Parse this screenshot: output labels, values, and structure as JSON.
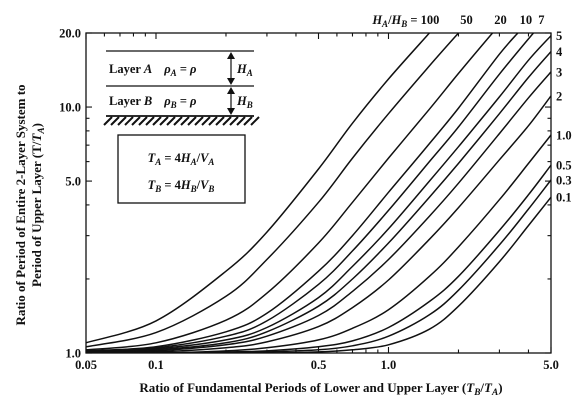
{
  "chart_data": {
    "type": "line",
    "xlabel": "Ratio of Fundamental Periods of Lower and Upper Layer (T_B/T_A)",
    "ylabel_line1": "Ratio of Period of Entire 2-Layer System to",
    "ylabel_line2": "Period of Upper Layer (T/T_A)",
    "x_scale": "log",
    "y_scale": "log",
    "xlim": [
      0.05,
      5.0
    ],
    "ylim": [
      1.0,
      20.0
    ],
    "x_ticks": [
      {
        "value": 0.05,
        "label": "0.05"
      },
      {
        "value": 0.1,
        "label": "0.1"
      },
      {
        "value": 0.5,
        "label": "0.5"
      },
      {
        "value": 1.0,
        "label": "1.0"
      },
      {
        "value": 5.0,
        "label": "5.0"
      }
    ],
    "y_ticks": [
      {
        "value": 1.0,
        "label": "1.0"
      },
      {
        "value": 5.0,
        "label": "5.0"
      },
      {
        "value": 10.0,
        "label": "10.0"
      },
      {
        "value": 20.0,
        "label": "20.0"
      }
    ],
    "grid": false,
    "parameter_label_prefix": "H_A/H_B = ",
    "series": [
      {
        "name": "100",
        "label_position": "top",
        "x": [
          0.05,
          0.1,
          0.2,
          0.3,
          0.5,
          0.7,
          1.0,
          1.5
        ],
        "y": [
          1.1,
          1.35,
          2.15,
          3.1,
          5.6,
          8.6,
          13.0,
          20.0
        ]
      },
      {
        "name": "50",
        "label_position": "top",
        "x": [
          0.05,
          0.1,
          0.2,
          0.3,
          0.5,
          0.7,
          1.0,
          1.5,
          2.0
        ],
        "y": [
          1.06,
          1.21,
          1.7,
          2.4,
          4.1,
          6.2,
          9.4,
          14.7,
          20.0
        ]
      },
      {
        "name": "20",
        "label_position": "top",
        "x": [
          0.05,
          0.1,
          0.2,
          0.3,
          0.5,
          0.7,
          1.0,
          1.5,
          2.0,
          2.8
        ],
        "y": [
          1.03,
          1.1,
          1.36,
          1.75,
          2.8,
          4.1,
          6.2,
          9.8,
          13.7,
          20.0
        ]
      },
      {
        "name": "10",
        "label_position": "top",
        "x": [
          0.05,
          0.1,
          0.2,
          0.3,
          0.5,
          0.7,
          1.0,
          1.5,
          2.0,
          3.0,
          3.6
        ],
        "y": [
          1.02,
          1.06,
          1.22,
          1.45,
          2.15,
          3.0,
          4.5,
          7.1,
          9.9,
          16.4,
          20.0
        ]
      },
      {
        "name": "7",
        "label_position": "top",
        "x": [
          0.05,
          0.1,
          0.2,
          0.3,
          0.5,
          0.7,
          1.0,
          1.5,
          2.0,
          3.0,
          4.2
        ],
        "y": [
          1.01,
          1.05,
          1.17,
          1.35,
          1.9,
          2.6,
          3.8,
          6.0,
          8.3,
          13.6,
          20.0
        ]
      },
      {
        "name": "5",
        "label_position": "right",
        "x": [
          0.05,
          0.1,
          0.2,
          0.3,
          0.5,
          0.7,
          1.0,
          1.5,
          2.0,
          3.0,
          4.0,
          5.0
        ],
        "y": [
          1.01,
          1.04,
          1.13,
          1.27,
          1.68,
          2.25,
          3.2,
          5.0,
          6.9,
          11.0,
          15.5,
          19.5
        ]
      },
      {
        "name": "4",
        "label_position": "right",
        "x": [
          0.05,
          0.1,
          0.2,
          0.3,
          0.5,
          0.7,
          1.0,
          1.5,
          2.0,
          3.0,
          4.0,
          5.0
        ],
        "y": [
          1.01,
          1.03,
          1.1,
          1.22,
          1.55,
          2.0,
          2.8,
          4.3,
          5.9,
          9.4,
          13.2,
          16.8
        ]
      },
      {
        "name": "3",
        "label_position": "right",
        "x": [
          0.05,
          0.1,
          0.2,
          0.3,
          0.5,
          0.7,
          1.0,
          1.5,
          2.0,
          3.0,
          4.0,
          5.0
        ],
        "y": [
          1.0,
          1.02,
          1.08,
          1.17,
          1.42,
          1.78,
          2.4,
          3.6,
          4.9,
          7.8,
          10.9,
          13.9
        ]
      },
      {
        "name": "2",
        "label_position": "right",
        "x": [
          0.05,
          0.1,
          0.2,
          0.3,
          0.5,
          0.7,
          1.0,
          1.5,
          2.0,
          3.0,
          4.0,
          5.0
        ],
        "y": [
          1.0,
          1.01,
          1.05,
          1.11,
          1.28,
          1.53,
          1.98,
          2.9,
          3.9,
          6.1,
          8.4,
          11.1
        ]
      },
      {
        "name": "1.0",
        "label_position": "right",
        "x": [
          0.05,
          0.1,
          0.2,
          0.3,
          0.5,
          0.7,
          1.0,
          1.5,
          2.0,
          3.0,
          4.0,
          5.0
        ],
        "y": [
          1.0,
          1.0,
          1.02,
          1.05,
          1.13,
          1.26,
          1.5,
          2.05,
          2.7,
          4.2,
          5.9,
          7.7
        ]
      },
      {
        "name": "0.5",
        "label_position": "right",
        "x": [
          0.05,
          0.1,
          0.2,
          0.3,
          0.5,
          0.7,
          1.0,
          1.5,
          2.0,
          3.0,
          4.0,
          5.0
        ],
        "y": [
          1.0,
          1.0,
          1.01,
          1.02,
          1.06,
          1.12,
          1.27,
          1.62,
          2.05,
          3.15,
          4.4,
          5.8
        ]
      },
      {
        "name": "0.3",
        "label_position": "right",
        "x": [
          0.05,
          0.1,
          0.2,
          0.3,
          0.5,
          0.7,
          1.0,
          1.5,
          2.0,
          3.0,
          4.0,
          5.0
        ],
        "y": [
          1.0,
          1.0,
          1.0,
          1.01,
          1.03,
          1.07,
          1.17,
          1.43,
          1.8,
          2.75,
          3.85,
          5.05
        ]
      },
      {
        "name": "0.1",
        "label_position": "right",
        "x": [
          0.05,
          0.1,
          0.2,
          0.3,
          0.5,
          0.7,
          1.0,
          1.5,
          2.0,
          3.0,
          4.0,
          5.0
        ],
        "y": [
          1.0,
          1.0,
          1.0,
          1.0,
          1.01,
          1.03,
          1.08,
          1.25,
          1.55,
          2.35,
          3.3,
          4.3
        ]
      }
    ]
  },
  "inset": {
    "layer_a_name": "Layer A",
    "layer_a_density": "ρ_A = ρ",
    "layer_a_thickness": "H_A",
    "layer_b_name": "Layer B",
    "layer_b_density": "ρ_B = ρ",
    "layer_b_thickness": "H_B",
    "formula_a": "T_A = 4H_A/V_A",
    "formula_b": "T_B = 4H_B/V_B"
  }
}
